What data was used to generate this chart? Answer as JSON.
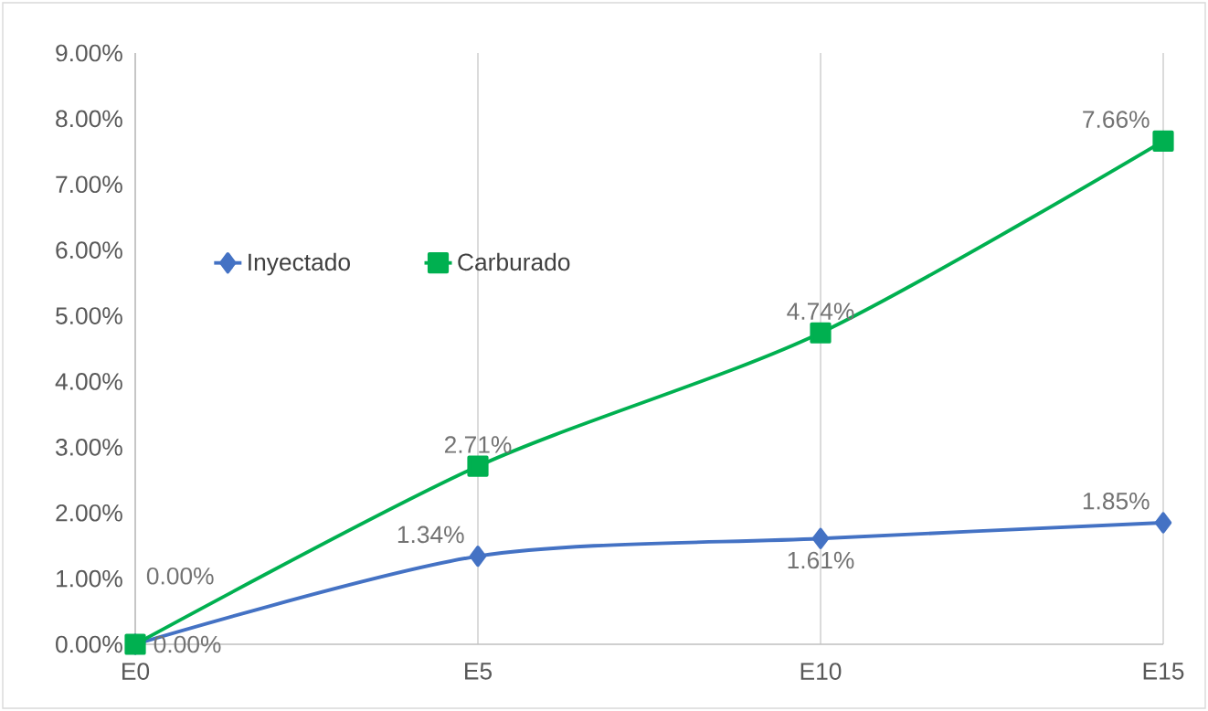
{
  "chart_data": {
    "type": "line",
    "categories": [
      "E0",
      "E5",
      "E10",
      "E15"
    ],
    "series": [
      {
        "name": "Inyectado",
        "color": "#4472c4",
        "marker": "diamond",
        "values": [
          0,
          1.34,
          1.61,
          1.85
        ],
        "value_labels": [
          "0.00%",
          "1.34%",
          "1.61%",
          "1.85%"
        ]
      },
      {
        "name": "Carburado",
        "color": "#00b050",
        "marker": "square",
        "values": [
          0,
          2.71,
          4.74,
          7.66
        ],
        "value_labels": [
          "0.00%",
          "2.71%",
          "4.74%",
          "7.66%"
        ]
      }
    ],
    "ylim": [
      0,
      9
    ],
    "yticks": [
      {
        "value": 0,
        "label": "0.00%"
      },
      {
        "value": 1,
        "label": "1.00%"
      },
      {
        "value": 2,
        "label": "2.00%"
      },
      {
        "value": 3,
        "label": "3.00%"
      },
      {
        "value": 4,
        "label": "4.00%"
      },
      {
        "value": 5,
        "label": "5.00%"
      },
      {
        "value": 6,
        "label": "6.00%"
      },
      {
        "value": 7,
        "label": "7.00%"
      },
      {
        "value": 8,
        "label": "8.00%"
      },
      {
        "value": 9,
        "label": "9.00%"
      }
    ],
    "grid": "x",
    "legend": "left",
    "line_style": "solid"
  }
}
